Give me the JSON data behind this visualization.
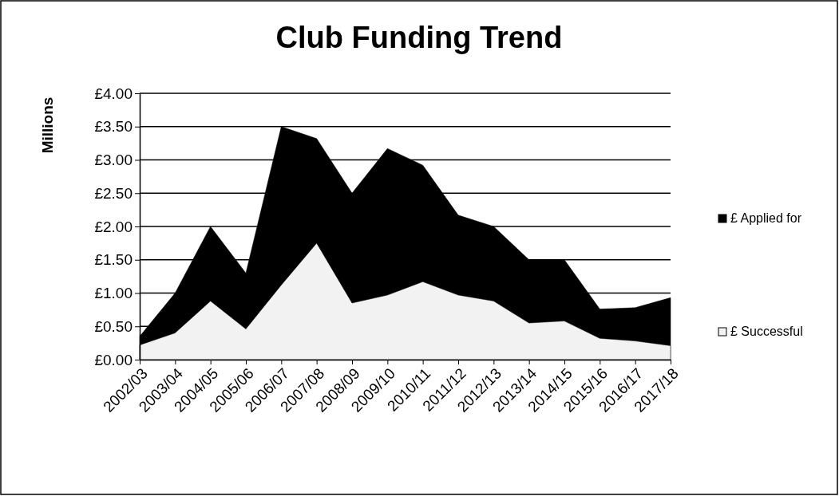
{
  "chart_data": {
    "type": "area",
    "title": "Club Funding Trend",
    "ylabel": "Millions",
    "categories": [
      "2002/03",
      "2003/04",
      "2004/05",
      "2005/06",
      "2006/07",
      "2007/08",
      "2008/09",
      "2009/10",
      "2010/11",
      "2011/12",
      "2012/13",
      "2013/14",
      "2014/15",
      "2015/16",
      "2016/17",
      "2017/18"
    ],
    "series": [
      {
        "name": "£ Applied for",
        "color": "#000000",
        "values": [
          0.35,
          1.0,
          2.0,
          1.3,
          3.5,
          3.32,
          2.5,
          3.17,
          2.92,
          2.17,
          2.0,
          1.5,
          1.5,
          0.76,
          0.78,
          0.93
        ]
      },
      {
        "name": "£ Successful",
        "color": "#f2f2f2",
        "values": [
          0.22,
          0.4,
          0.88,
          0.46,
          1.12,
          1.75,
          0.85,
          0.97,
          1.17,
          0.97,
          0.88,
          0.55,
          0.58,
          0.32,
          0.28,
          0.21
        ]
      }
    ],
    "ylim": [
      0,
      4
    ],
    "yticks": [
      {
        "value": 0,
        "label": "£0.00"
      },
      {
        "value": 0.5,
        "label": "£0.50"
      },
      {
        "value": 1,
        "label": "£1.00"
      },
      {
        "value": 1.5,
        "label": "£1.50"
      },
      {
        "value": 2,
        "label": "£2.00"
      },
      {
        "value": 2.5,
        "label": "£2.50"
      },
      {
        "value": 3,
        "label": "£3.00"
      },
      {
        "value": 3.5,
        "label": "£3.50"
      },
      {
        "value": 4,
        "label": "£4.00"
      }
    ],
    "grid": "y",
    "legend": "right"
  }
}
